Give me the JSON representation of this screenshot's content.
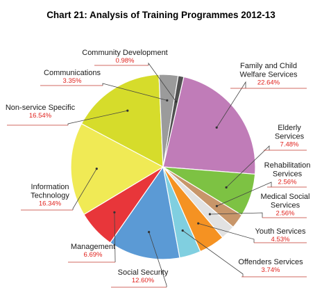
{
  "chart_data": {
    "type": "pie",
    "title": "Chart 21: Analysis of Training Programmes 2012-13",
    "start_angle_deg": 13,
    "direction": "clockwise",
    "slices": [
      {
        "name": "Family and Child Welfare Services",
        "lines": [
          "Family and Child",
          "Welfare Services"
        ],
        "value": 22.64,
        "value_label": "22.64%",
        "color": "#c07cb8"
      },
      {
        "name": "Elderly Services",
        "lines": [
          "Elderly",
          "Services"
        ],
        "value": 7.48,
        "value_label": "7.48%",
        "color": "#7dc243"
      },
      {
        "name": "Rehabilitation Services",
        "lines": [
          "Rehabilitation",
          "Services"
        ],
        "value": 2.56,
        "value_label": "2.56%",
        "color": "#c8966a"
      },
      {
        "name": "Medical Social Services",
        "lines": [
          "Medical Social",
          "Services"
        ],
        "value": 2.56,
        "value_label": "2.56%",
        "color": "#e2e2e2"
      },
      {
        "name": "Youth Services",
        "lines": [
          "Youth Services"
        ],
        "value": 4.53,
        "value_label": "4.53%",
        "color": "#f59222"
      },
      {
        "name": "Offenders Services",
        "lines": [
          "Offenders Services"
        ],
        "value": 3.74,
        "value_label": "3.74%",
        "color": "#80cfe0"
      },
      {
        "name": "Social Security",
        "lines": [
          "Social Security"
        ],
        "value": 12.6,
        "value_label": "12.60%",
        "color": "#5b9ad5"
      },
      {
        "name": "Management",
        "lines": [
          "Management"
        ],
        "value": 6.69,
        "value_label": "6.69%",
        "color": "#e8363a"
      },
      {
        "name": "Information Technology",
        "lines": [
          "Information",
          "Technology"
        ],
        "value": 16.34,
        "value_label": "16.34%",
        "color": "#f0ea55"
      },
      {
        "name": "Non-service Specific",
        "lines": [
          "Non-service Specific"
        ],
        "value": 16.54,
        "value_label": "16.54%",
        "color": "#d6dc2b"
      },
      {
        "name": "Communications",
        "lines": [
          "Communications"
        ],
        "value": 3.35,
        "value_label": "3.35%",
        "color": "#9b9b9b"
      },
      {
        "name": "Community Development",
        "lines": [
          "Community Development"
        ],
        "value": 0.98,
        "value_label": "0.98%",
        "color": "#505050"
      }
    ]
  }
}
